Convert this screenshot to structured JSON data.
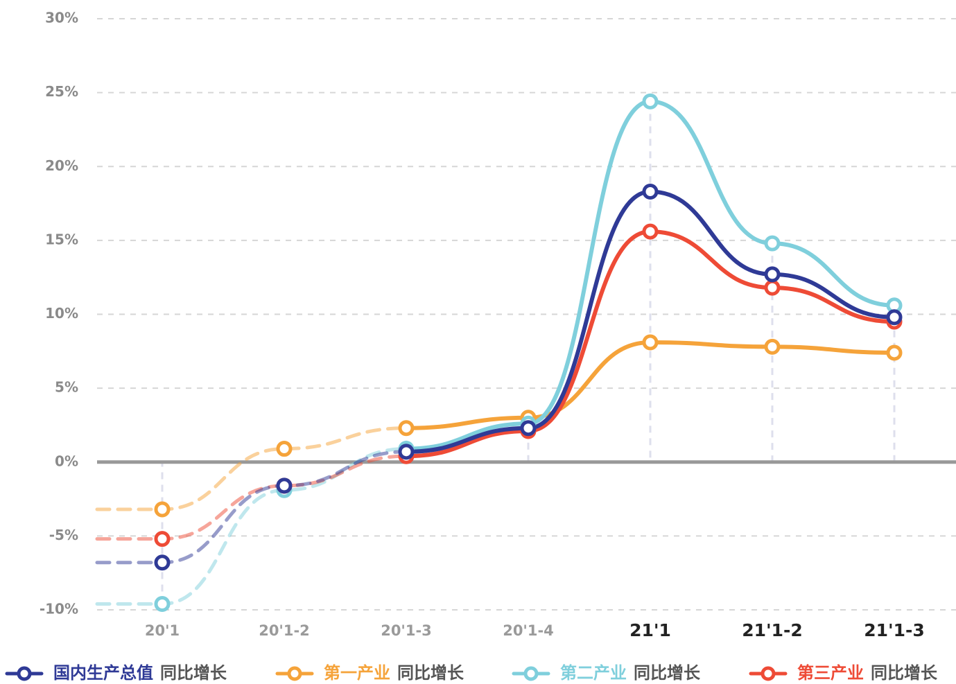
{
  "chart_data": {
    "type": "line",
    "categories": [
      "20'1",
      "20'1-2",
      "20'1-3",
      "20'1-4",
      "21'1",
      "21'1-2",
      "21'1-3"
    ],
    "series": [
      {
        "name": "国内生产总值",
        "color": "#2f3a96",
        "values": [
          -6.8,
          -1.6,
          0.7,
          2.3,
          18.3,
          12.7,
          9.8
        ]
      },
      {
        "name": "第一产业",
        "color": "#f5a33a",
        "values": [
          -3.2,
          0.9,
          2.3,
          3.0,
          8.1,
          7.8,
          7.4
        ]
      },
      {
        "name": "第二产业",
        "color": "#7fcfdc",
        "values": [
          -9.6,
          -1.9,
          0.9,
          2.6,
          24.4,
          14.8,
          10.6
        ]
      },
      {
        "name": "第三产业",
        "color": "#ee4b36",
        "values": [
          -5.2,
          -1.6,
          0.4,
          2.1,
          15.6,
          11.8,
          9.5
        ]
      }
    ],
    "legend_suffix": "同比增长",
    "ylim": [
      -10,
      30
    ],
    "yticks": [
      {
        "value": -10,
        "label": "-10%"
      },
      {
        "value": -5,
        "label": "-5%"
      },
      {
        "value": 0,
        "label": "0%"
      },
      {
        "value": 5,
        "label": "5%"
      },
      {
        "value": 10,
        "label": "10%"
      },
      {
        "value": 15,
        "label": "15%"
      },
      {
        "value": 20,
        "label": "20%"
      },
      {
        "value": 25,
        "label": "25%"
      },
      {
        "value": 30,
        "label": "30%"
      }
    ],
    "grid": true,
    "legend": "bottom"
  }
}
